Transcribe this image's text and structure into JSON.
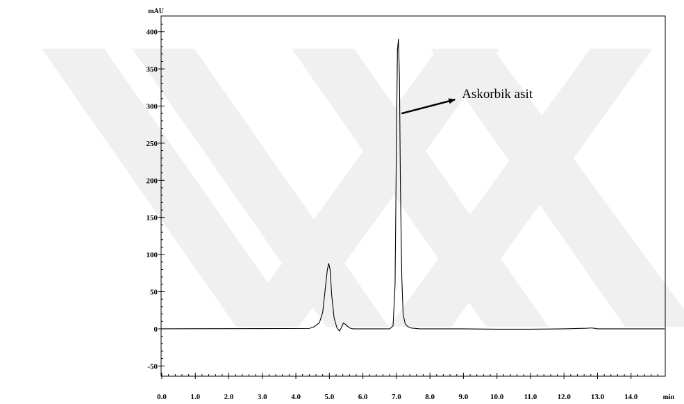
{
  "chart_data": {
    "type": "line",
    "title": "",
    "xlabel": "min",
    "ylabel": "mAU",
    "xlim": [
      0.0,
      15.0
    ],
    "ylim": [
      -60,
      410
    ],
    "x_ticks": [
      0.0,
      1.0,
      2.0,
      3.0,
      4.0,
      5.0,
      6.0,
      7.0,
      8.0,
      9.0,
      10.0,
      11.0,
      12.0,
      13.0,
      14.0
    ],
    "x_tick_labels": [
      "0.0",
      "1.0",
      "2.0",
      "3.0",
      "4.0",
      "5.0",
      "6.0",
      "7.0",
      "8.0",
      "9.0",
      "10.0",
      "11.0",
      "12.0",
      "13.0",
      "14.0"
    ],
    "y_ticks": [
      -50,
      0,
      50,
      100,
      150,
      200,
      250,
      300,
      350,
      400
    ],
    "y_tick_labels": [
      "-50",
      "0",
      "50",
      "100",
      "150",
      "200",
      "250",
      "300",
      "350",
      "400"
    ],
    "grid": false,
    "series": [
      {
        "color": "#000000",
        "x": [
          0.0,
          4.4,
          4.55,
          4.7,
          4.8,
          4.88,
          4.94,
          4.98,
          5.02,
          5.07,
          5.14,
          5.22,
          5.3,
          5.36,
          5.42,
          5.48,
          5.55,
          5.62,
          5.7,
          5.8,
          6.0,
          6.5,
          6.8,
          6.9,
          6.96,
          7.0,
          7.03,
          7.06,
          7.09,
          7.12,
          7.16,
          7.2,
          7.26,
          7.34,
          7.45,
          7.7,
          8.0,
          9.0,
          10.0,
          11.0,
          12.0,
          12.7,
          12.8,
          12.9,
          13.0,
          13.5,
          14.0,
          15.0
        ],
        "y": [
          0,
          0.5,
          3,
          8,
          22,
          55,
          80,
          88,
          80,
          45,
          15,
          2,
          -3,
          2,
          8,
          6,
          3,
          1,
          0,
          0,
          0,
          0,
          0,
          4,
          60,
          250,
          375,
          390,
          340,
          190,
          70,
          20,
          7,
          3,
          1,
          0,
          0,
          0,
          -0.5,
          -0.5,
          0,
          0.8,
          1.2,
          0.8,
          0,
          0,
          0,
          0
        ]
      }
    ],
    "annotations": [
      {
        "text": "Askorbik asit",
        "points_to_x": 7.09,
        "points_to_y": 290
      }
    ]
  }
}
